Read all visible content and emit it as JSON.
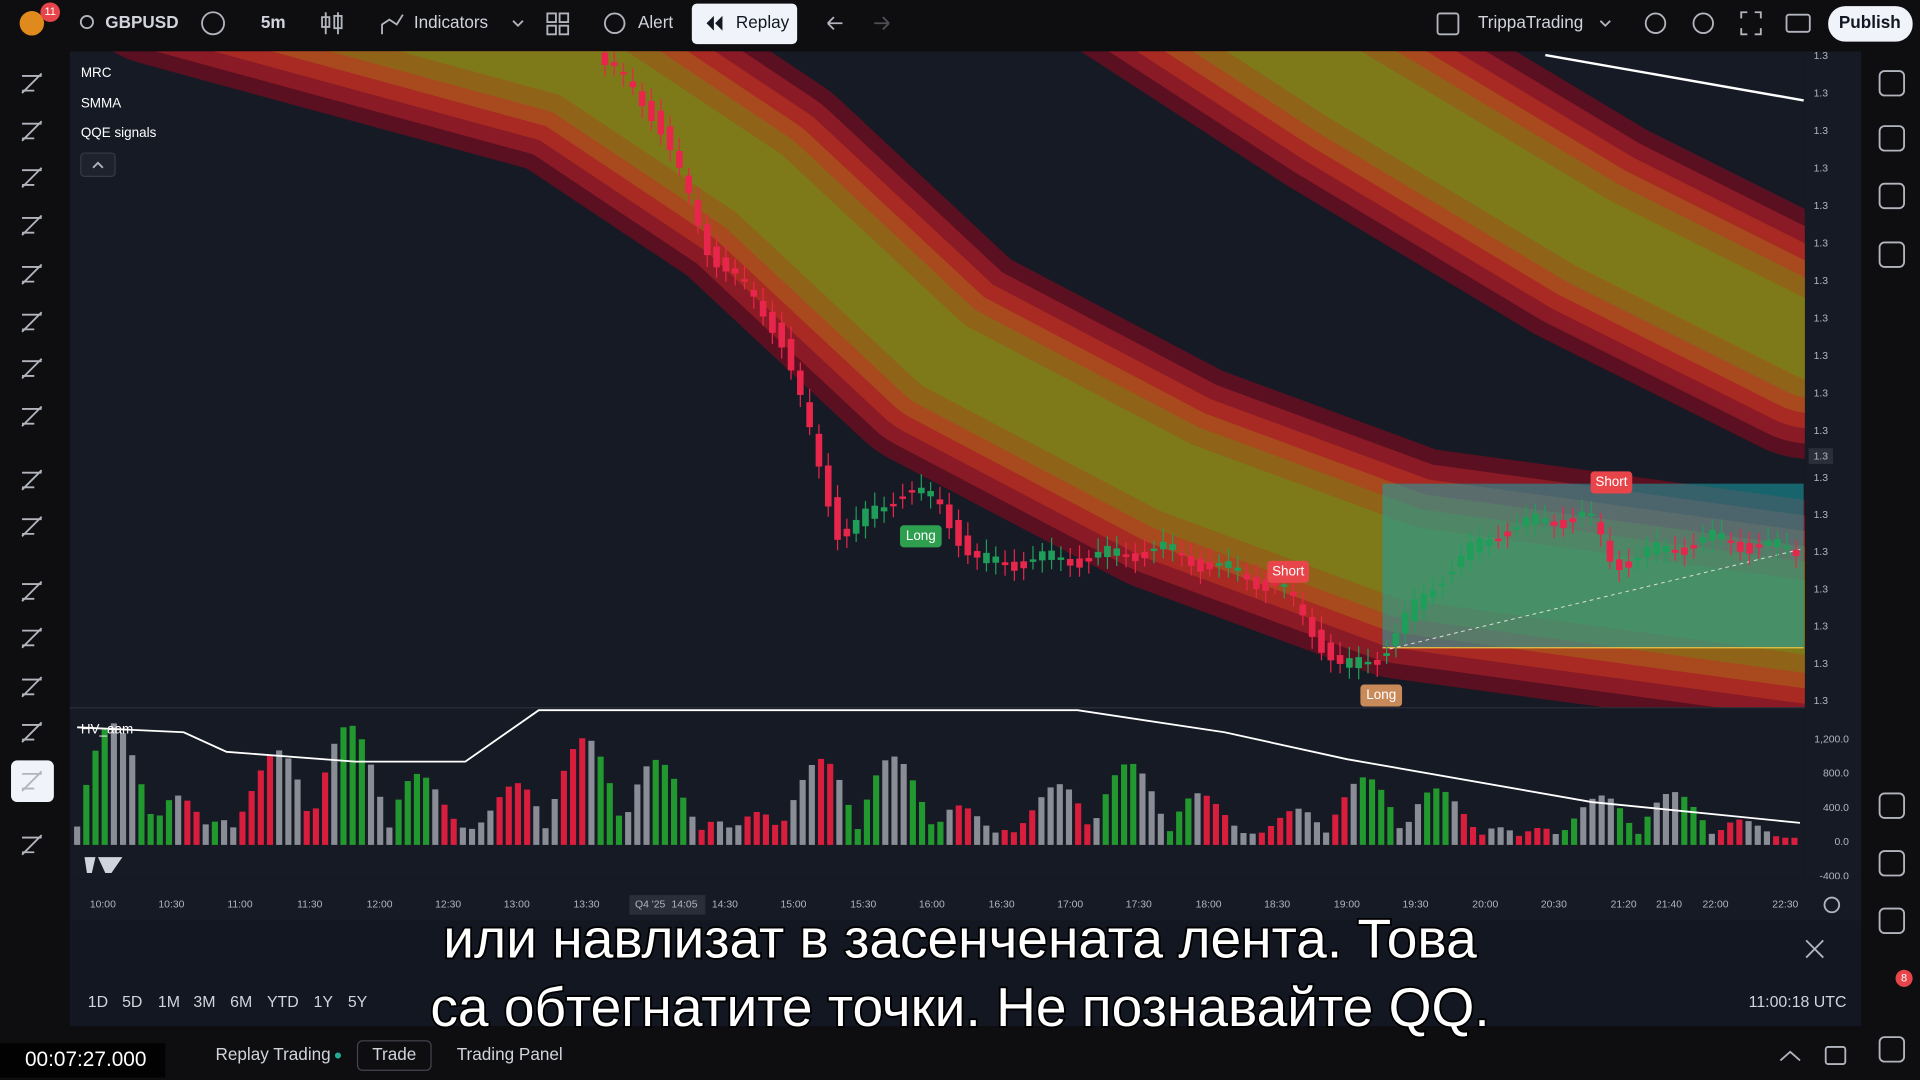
{
  "top_bar": {
    "badge": "11",
    "symbol": "GBPUSD",
    "interval": "5m",
    "indicators": "Indicators",
    "alert": "Alert",
    "replay": "Replay",
    "account": "TrippaTrading",
    "publish": "Publish"
  },
  "indicators": [
    "MRC",
    "SMMA",
    "QQE signals"
  ],
  "price_axis": [
    "1.3",
    "1.3",
    "1.3",
    "1.3",
    "1.3",
    "1.3",
    "1.3",
    "1.3",
    "1.3",
    "1.3",
    "1.3",
    "1.3",
    "1.3",
    "1.3",
    "1.3",
    "1.3",
    "1.3",
    "1.3"
  ],
  "current_price": "1.3",
  "volume_pane": {
    "title": "HV_aam",
    "axis": [
      "1,200.0",
      "800.0",
      "400.0",
      "0.0",
      "-400.0"
    ]
  },
  "time_axis": [
    "10:00",
    "10:30",
    "11:00",
    "11:30",
    "12:00",
    "12:30",
    "13:00",
    "13:30",
    "14:30",
    "15:00",
    "15:30",
    "16:00",
    "16:30",
    "17:00",
    "17:30",
    "18:00",
    "18:30",
    "19:00",
    "19:30",
    "20:00",
    "20:30",
    "21:20",
    "21:40",
    "22:00",
    "22:30"
  ],
  "time_cursor": [
    "Q4 '25",
    "14:05"
  ],
  "signals": [
    "Long",
    "Short",
    "Short",
    "Long"
  ],
  "range_buttons": [
    "1D",
    "5D",
    "1M",
    "3M",
    "6M",
    "YTD",
    "1Y",
    "5Y"
  ],
  "clock": "11:00:18 UTC",
  "bottom_tabs": [
    "Replay Trading",
    "Trade",
    "Trading Panel"
  ],
  "subtitles": [
    "или навлизат в засенчената лента. Това",
    "са обтегнатите точки. Не познавайте QQ."
  ],
  "video_time": "00:07:27.000",
  "notification_badge": "8"
}
